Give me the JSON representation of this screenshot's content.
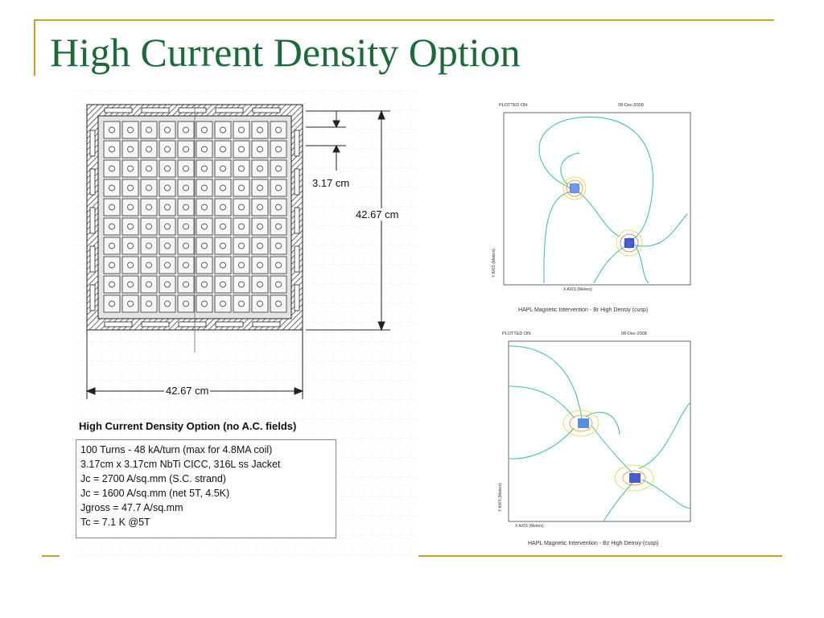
{
  "slide": {
    "title": "High Current Density Option"
  },
  "diagram": {
    "dim_conductor": "3.17 cm",
    "dim_height": "42.67 cm",
    "dim_width": "42.67 cm",
    "grid_rows": 10,
    "grid_cols": 10
  },
  "specs": {
    "title": "High Current Density Option (no A.C. fields)",
    "lines": [
      "100 Turns - 48 kA/turn (max for 4.8MA coil)",
      "3.17cm x 3.17cm NbTi CICC, 316L ss Jacket",
      "Jc = 2700 A/sq.mm (S.C. strand)",
      "Jc = 1600 A/sq.mm (net 5T, 4.5K)",
      "Jgross = 47.7 A/sq.mm",
      "Tc = 7.1 K @5T"
    ]
  },
  "plots": {
    "br": {
      "plotted_on": "PLOTTED ON:",
      "date": "08-Dec-2008",
      "xaxis": "X AXIS (Meters)",
      "yaxis": "Y AXIS (Meters)",
      "caption": "HAPL Magnetic Intervention - Br High Densiy (cusp)"
    },
    "bz": {
      "plotted_on": "PLOTTED ON:",
      "date": "08-Dec-2008",
      "xaxis": "X AXIS (Meters)",
      "yaxis": "Y AXIS (Meters)",
      "caption": "HAPL Magnetic Intervention - Bz High Densiy (cusp)"
    }
  },
  "colors": {
    "title": "#1a6b38",
    "accent": "#c8a02a",
    "field_line": "#37c48a"
  }
}
